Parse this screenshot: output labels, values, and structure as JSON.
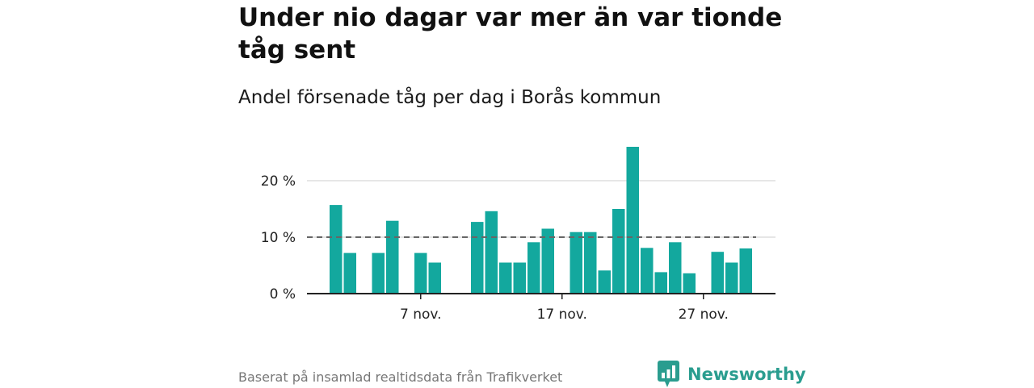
{
  "title": "Under nio dagar var mer än var tionde tåg sent",
  "subtitle": "Andel försenade tåg per dag i Borås kommun",
  "footer": "Baserat på insamlad realtidsdata från Trafikverket",
  "brand": {
    "name": "Newsworthy",
    "icon": "newsworthy-logo-icon",
    "color": "#2a9d8f"
  },
  "colors": {
    "bar": "#13a89e",
    "grid": "#d6d6d6",
    "reference": "#666666",
    "axis": "#222222"
  },
  "chart_data": {
    "type": "bar",
    "x_type": "date",
    "x": [
      "2024-11-01",
      "2024-11-02",
      "2024-11-03",
      "2024-11-04",
      "2024-11-05",
      "2024-11-06",
      "2024-11-07",
      "2024-11-08",
      "2024-11-09",
      "2024-11-10",
      "2024-11-11",
      "2024-11-12",
      "2024-11-13",
      "2024-11-14",
      "2024-11-15",
      "2024-11-16",
      "2024-11-17",
      "2024-11-18",
      "2024-11-19",
      "2024-11-20",
      "2024-11-21",
      "2024-11-22",
      "2024-11-23",
      "2024-11-24",
      "2024-11-25",
      "2024-11-26",
      "2024-11-27",
      "2024-11-28",
      "2024-11-29",
      "2024-11-30",
      "2024-12-01"
    ],
    "values": [
      15.7,
      7.2,
      null,
      7.2,
      12.9,
      null,
      7.2,
      5.5,
      null,
      null,
      12.7,
      14.6,
      5.5,
      5.5,
      9.1,
      11.5,
      null,
      10.9,
      10.9,
      4.1,
      15.0,
      26.0,
      8.1,
      3.8,
      9.1,
      3.6,
      null,
      7.4,
      5.5,
      8.0,
      null
    ],
    "ylim": [
      0,
      26
    ],
    "yticks": [
      0,
      10,
      20
    ],
    "ytick_labels": [
      "0 %",
      "10 %",
      "20 %"
    ],
    "xticks": [
      "2024-11-07",
      "2024-11-17",
      "2024-11-27"
    ],
    "xtick_labels": [
      "7 nov.",
      "17 nov.",
      "27 nov."
    ],
    "reference_line": {
      "y": 10,
      "style": "dashed"
    },
    "grid": true,
    "legend": "none",
    "xlabel": "",
    "ylabel": ""
  }
}
